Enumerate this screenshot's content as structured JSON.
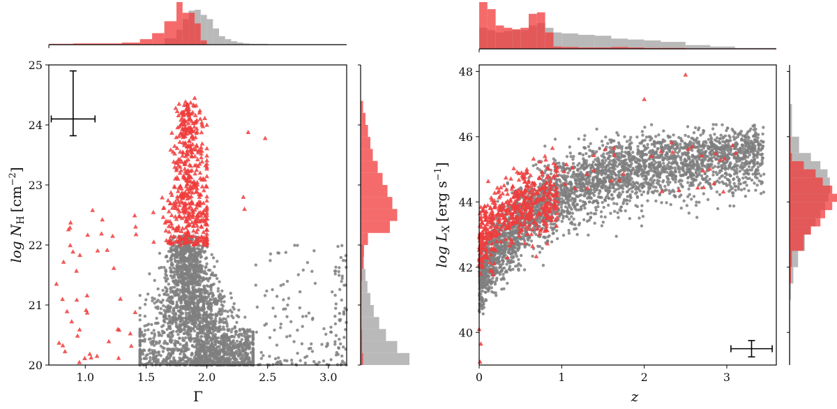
{
  "colors": {
    "obscured": "#f03c3c",
    "unobscured": "#7f7f7f",
    "hist_obscured": "#f23a3a",
    "hist_unobscured": "#b5b5b5",
    "axis": "#000000"
  },
  "chart_data": [
    {
      "type": "scatter",
      "name": "gamma-vs-nh",
      "xlabel": "Γ",
      "ylabel_main": "log N",
      "ylabel_sub": "H",
      "ylabel_unit": "[cm",
      "ylabel_exp": "−2",
      "ylabel_close": "]",
      "xlim": [
        0.7,
        3.15
      ],
      "ylim": [
        20,
        25
      ],
      "xticks": [
        1.0,
        1.5,
        2.0,
        2.5,
        3.0
      ],
      "xtick_labels": [
        "1.0",
        "1.5",
        "2.0",
        "2.5",
        "3.0"
      ],
      "yticks": [
        20,
        21,
        22,
        23,
        24,
        25
      ],
      "ytick_labels": [
        "20",
        "21",
        "22",
        "23",
        "24",
        "25"
      ],
      "grid": false,
      "markers": {
        "unobscured": "circle",
        "obscured": "triangle"
      },
      "typical_error_bar": {
        "x": 0.9,
        "y": 24.1,
        "x_err": 0.18,
        "y_err_low": 0.28,
        "y_err_high": 0.8
      },
      "distributions": {
        "unobscured_gamma": {
          "center": 1.93,
          "spread": 0.13,
          "range": [
            1.45,
            2.35
          ]
        },
        "unobscured_lognh": {
          "min": 20.0,
          "max": 22.15,
          "peak": 20.0
        },
        "obscured_gamma": {
          "center": 1.85,
          "spread": 0.1,
          "range": [
            1.5,
            2.0
          ]
        },
        "obscured_lognh": {
          "min": 22.0,
          "max": 24.4,
          "peak": 22.5
        }
      },
      "x_hist": {
        "bin_edges": [
          0.7,
          0.9,
          1.1,
          1.3,
          1.45,
          1.55,
          1.65,
          1.75,
          1.8,
          1.85,
          1.9,
          1.95,
          2.0,
          2.05,
          2.1,
          2.15,
          2.2,
          2.25,
          2.3,
          2.35,
          2.5,
          3.15
        ],
        "obscured": [
          0.02,
          0.03,
          0.03,
          0.05,
          0.13,
          0.27,
          0.55,
          1.0,
          0.75,
          0.75,
          0.5,
          0.1,
          0.0,
          0.0,
          0.0,
          0.0,
          0.0,
          0.0,
          0.0,
          0.0,
          0.0
        ],
        "unobscured": [
          0.0,
          0.0,
          0.0,
          0.0,
          0.0,
          0.0,
          0.15,
          0.35,
          0.6,
          0.8,
          0.82,
          0.7,
          0.6,
          0.38,
          0.2,
          0.13,
          0.08,
          0.05,
          0.03,
          0.02,
          0.01
        ]
      },
      "y_hist": {
        "bin_edges": [
          20.0,
          20.2,
          20.4,
          20.6,
          20.8,
          21.0,
          21.2,
          21.4,
          21.6,
          21.8,
          22.0,
          22.2,
          22.4,
          22.6,
          22.8,
          23.0,
          23.2,
          23.4,
          23.6,
          23.8,
          24.0,
          24.2,
          24.4
        ],
        "obscured": [
          0.05,
          0.03,
          0.03,
          0.02,
          0.02,
          0.02,
          0.02,
          0.03,
          0.05,
          0.07,
          0.15,
          0.6,
          0.75,
          0.65,
          0.55,
          0.45,
          0.35,
          0.25,
          0.2,
          0.15,
          0.1,
          0.05
        ],
        "unobscured": [
          1.0,
          0.75,
          0.52,
          0.38,
          0.27,
          0.2,
          0.14,
          0.1,
          0.07,
          0.05,
          0.0,
          0.0,
          0.0,
          0.0,
          0.0,
          0.0,
          0.0,
          0.0,
          0.0,
          0.0,
          0.0,
          0.0
        ]
      }
    },
    {
      "type": "scatter",
      "name": "z-vs-lx",
      "xlabel": "z",
      "ylabel_main": "log L",
      "ylabel_sub": "X",
      "ylabel_unit": "[erg s",
      "ylabel_exp": "−1",
      "ylabel_close": "]",
      "xlim": [
        0,
        3.6
      ],
      "ylim": [
        39,
        48.2
      ],
      "xticks": [
        0,
        1,
        2,
        3
      ],
      "xtick_labels": [
        "0",
        "1",
        "2",
        "3"
      ],
      "yticks": [
        40,
        42,
        44,
        46,
        48
      ],
      "ytick_labels": [
        "40",
        "42",
        "44",
        "46",
        "48"
      ],
      "grid": false,
      "markers": {
        "unobscured": "circle",
        "obscured": "triangle"
      },
      "typical_error_bar": {
        "x": 3.3,
        "y": 39.5,
        "x_err": 0.25,
        "y_err_low": 0.25,
        "y_err_high": 0.25
      },
      "distributions": {
        "relation": "logLx rises from ~41.5 at z=0 to ~45 at z=3.5",
        "obscured_z_range": [
          0,
          1.0
        ],
        "obscured_lx_range": [
          42.3,
          45.3
        ]
      },
      "x_hist": {
        "bin_edges": [
          0.0,
          0.1,
          0.2,
          0.3,
          0.4,
          0.5,
          0.6,
          0.7,
          0.8,
          0.9,
          1.0,
          1.2,
          1.4,
          1.6,
          1.8,
          2.0,
          2.2,
          2.5,
          2.8,
          3.1,
          3.6
        ],
        "obscured": [
          1.0,
          0.85,
          0.5,
          0.45,
          0.42,
          0.45,
          0.75,
          0.78,
          0.35,
          0.05,
          0.04,
          0.03,
          0.03,
          0.04,
          0.03,
          0.02,
          0.02,
          0.01,
          0.01,
          0.01
        ],
        "unobscured": [
          0.45,
          0.4,
          0.35,
          0.38,
          0.4,
          0.4,
          0.5,
          0.55,
          0.45,
          0.35,
          0.33,
          0.3,
          0.28,
          0.22,
          0.2,
          0.18,
          0.15,
          0.08,
          0.05,
          0.02
        ]
      },
      "y_hist": {
        "bin_edges": [
          39.0,
          40.0,
          41.0,
          41.5,
          42.0,
          42.5,
          43.0,
          43.25,
          43.5,
          43.75,
          44.0,
          44.25,
          44.5,
          44.75,
          45.0,
          45.25,
          45.5,
          46.0,
          47.0,
          48.0
        ],
        "obscured": [
          0.01,
          0.01,
          0.01,
          0.03,
          0.05,
          0.3,
          0.45,
          0.65,
          0.75,
          0.9,
          1.0,
          0.9,
          0.7,
          0.55,
          0.3,
          0.05,
          0.02,
          0.01,
          0.01
        ],
        "unobscured": [
          0.0,
          0.01,
          0.03,
          0.08,
          0.18,
          0.32,
          0.45,
          0.55,
          0.65,
          0.75,
          0.82,
          0.86,
          0.85,
          0.8,
          0.65,
          0.45,
          0.2,
          0.05,
          0.01
        ]
      }
    }
  ]
}
